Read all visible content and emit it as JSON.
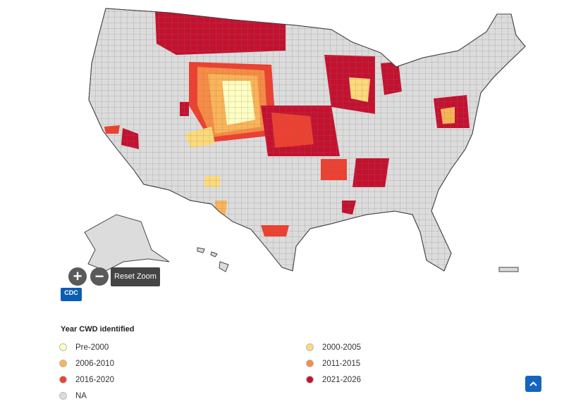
{
  "map": {
    "controls": {
      "reset_zoom": "Reset Zoom"
    },
    "logo": "CDC",
    "legend": {
      "title": "Year CWD identified",
      "items": [
        {
          "label": "Pre-2000",
          "color": "#ffffc2"
        },
        {
          "label": "2000-2005",
          "color": "#fcd97a"
        },
        {
          "label": "2006-2010",
          "color": "#fbb458"
        },
        {
          "label": "2011-2015",
          "color": "#f78c45"
        },
        {
          "label": "2016-2020",
          "color": "#ee4030"
        },
        {
          "label": "2021-2026",
          "color": "#c4112f"
        },
        {
          "label": "NA",
          "color": "#dcdcdc"
        }
      ]
    }
  }
}
